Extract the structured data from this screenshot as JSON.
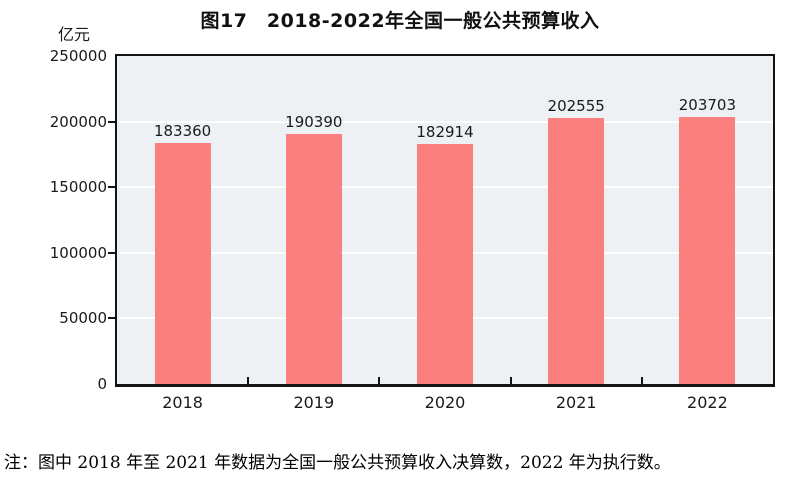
{
  "header": {
    "unit_label": "亿元"
  },
  "chart_data": {
    "type": "bar",
    "title": "图17　2018-2022年全国一般公共预算收入",
    "categories": [
      "2018",
      "2019",
      "2020",
      "2021",
      "2022"
    ],
    "values": [
      183360,
      190390,
      182914,
      202555,
      203703
    ],
    "xlabel": "",
    "ylabel": "亿元",
    "ylim": [
      0,
      250000
    ],
    "ytick_interval": 50000,
    "ytick_labels": [
      "0",
      "50000",
      "100000",
      "150000",
      "200000",
      "250000"
    ],
    "grid": true,
    "legend": "none",
    "bar_color": "#fa8080",
    "plot_bg": "#edf1f4",
    "gridline_color": "#fdfefe",
    "axis_color": "#141414",
    "text_color": "#1a1a1a"
  },
  "note": {
    "text": "注：图中 2018 年至 2021 年数据为全国一般公共预算收入决算数，2022 年为执行数。"
  }
}
